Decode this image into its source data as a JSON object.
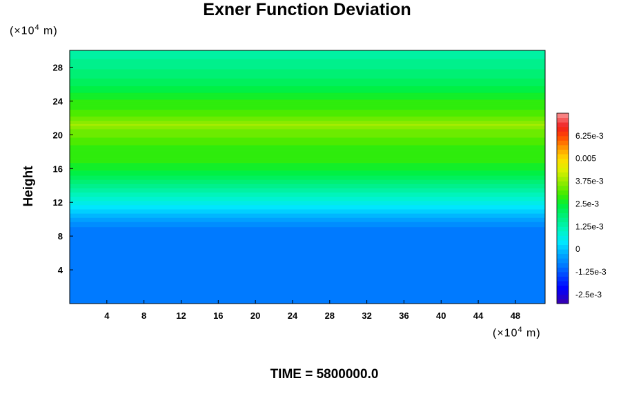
{
  "title": "Exner Function Deviation",
  "y_unit": "(×10",
  "y_unit_exp": "4",
  "y_unit_tail": " m)",
  "x_unit": "(×10",
  "x_unit_exp": "4",
  "x_unit_tail": " m)",
  "footer": "TIME = 5800000.0",
  "chart_data": {
    "type": "heatmap",
    "title": "Exner Function Deviation",
    "xlabel": "",
    "ylabel": "Height",
    "x_unit": "(×10^4 m)",
    "y_unit": "(×10^4 m)",
    "xlim": [
      0,
      51.2
    ],
    "ylim": [
      0,
      30
    ],
    "x_ticks": [
      4,
      8,
      12,
      16,
      20,
      24,
      28,
      32,
      36,
      40,
      44,
      48
    ],
    "y_ticks": [
      4,
      8,
      12,
      16,
      20,
      24,
      28
    ],
    "colorbar": {
      "min": -0.003,
      "max": 0.0075,
      "step": 0.00025,
      "labels": [
        "6.25e-3",
        "0.005",
        "3.75e-3",
        "2.5e-3",
        "1.25e-3",
        "0",
        "-1.25e-3",
        "-2.5e-3"
      ],
      "label_values": [
        0.00625,
        0.005,
        0.00375,
        0.0025,
        0.00125,
        0,
        -0.00125,
        -0.0025
      ]
    },
    "profile_height": [
      0,
      8.5,
      9.5,
      10.5,
      11.5,
      12.5,
      13.5,
      14.5,
      15.5,
      16.5,
      17.5,
      18.5,
      19.5,
      20.5,
      21.2,
      22,
      23,
      24,
      25,
      26,
      27,
      28,
      29,
      30
    ],
    "profile_value": [
      -0.00095,
      -0.00095,
      -0.0006,
      -0.0001,
      0.0004,
      0.0009,
      0.0014,
      0.0019,
      0.0024,
      0.0027,
      0.003,
      0.0029,
      0.0032,
      0.0034,
      0.0038,
      0.0033,
      0.003,
      0.0028,
      0.0025,
      0.0022,
      0.0019,
      0.0017,
      0.0015,
      0.0014
    ],
    "time": "TIME = 5800000.0",
    "colors": {
      "low_region": "#00a8ff",
      "mid_region": "#00f000",
      "top_region": "#00f088"
    }
  }
}
